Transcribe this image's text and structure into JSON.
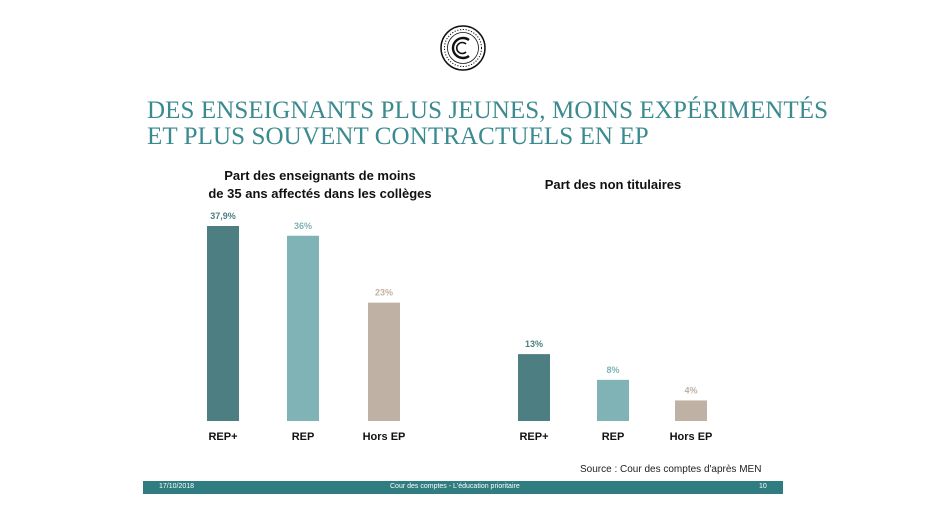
{
  "header": {
    "logo_letter": "C",
    "title_lines": [
      "DES ENSEIGNANTS PLUS JEUNES, MOINS EXPÉRIMENTÉS",
      "ET PLUS SOUVENT CONTRACTUELS EN EP"
    ]
  },
  "chart_data": [
    {
      "type": "bar",
      "title_lines": [
        "Part des enseignants de moins",
        "de 35 ans affectés dans les collèges"
      ],
      "categories": [
        "REP+",
        "REP",
        "Hors EP"
      ],
      "values": [
        37.9,
        36,
        23
      ],
      "labels": [
        "37,9%",
        "36%",
        "23%"
      ],
      "colors": [
        "#4d7f82",
        "#80b3b5",
        "#bfb2a5"
      ],
      "ylim": [
        0,
        40
      ]
    },
    {
      "type": "bar",
      "title_lines": [
        "Part des non titulaires"
      ],
      "categories": [
        "REP+",
        "REP",
        "Hors EP"
      ],
      "values": [
        13,
        8,
        4
      ],
      "labels": [
        "13%",
        "8%",
        "4%"
      ],
      "colors": [
        "#4d7f82",
        "#80b3b5",
        "#bfb2a5"
      ],
      "ylim": [
        0,
        40
      ]
    }
  ],
  "source": "Source : Cour des comptes d'après MEN",
  "footer": {
    "date": "17/10/2018",
    "center": "Cour des comptes - L'éducation prioritaire",
    "page": "10"
  },
  "colors": {
    "title": "#3a8a8f",
    "footer_bar": "#2f7d81"
  }
}
